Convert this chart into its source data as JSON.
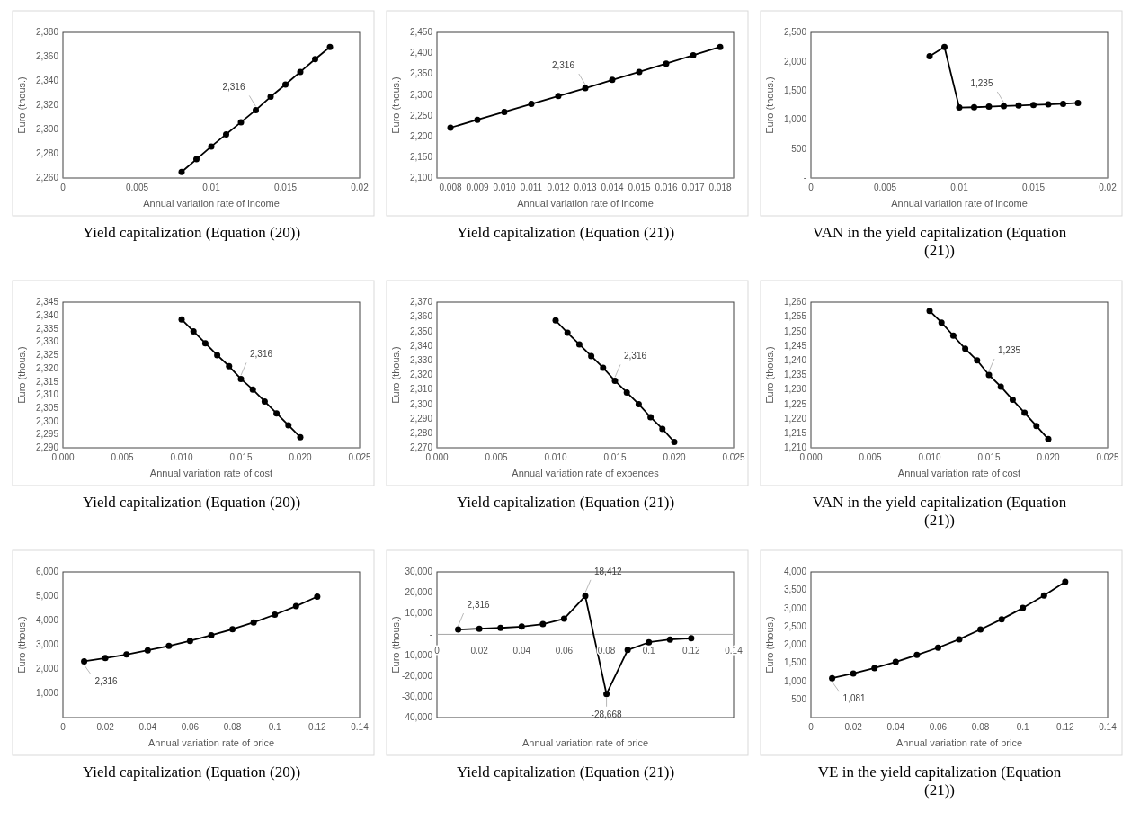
{
  "chart_data": [
    {
      "type": "line",
      "title": "Yield capitalization (Equation (20))",
      "xlabel": "Annual variation rate of income",
      "ylabel": "Euro (thous.)",
      "marker": "circle",
      "grid": false,
      "x": [
        0.008,
        0.009,
        0.01,
        0.011,
        0.012,
        0.013,
        0.014,
        0.015,
        0.016,
        0.017,
        0.018
      ],
      "series": [
        {
          "color": "#000000",
          "values": [
            2265,
            2275.5,
            2286,
            2296,
            2306,
            2316,
            2327,
            2337,
            2347.5,
            2358,
            2368
          ]
        }
      ],
      "xlim": [
        0,
        0.02
      ],
      "xticks": [
        0,
        0.005,
        0.01,
        0.015,
        0.02
      ],
      "ylim": [
        2260,
        2380
      ],
      "yticks": [
        {
          "value": 2260,
          "label": "2,260"
        },
        {
          "value": 2280,
          "label": "2,280"
        },
        {
          "value": 2300,
          "label": "2,300"
        },
        {
          "value": 2320,
          "label": "2,320"
        },
        {
          "value": 2340,
          "label": "2,340"
        },
        {
          "value": 2360,
          "label": "2,360"
        },
        {
          "value": 2380,
          "label": "2,380"
        }
      ],
      "annotations": [
        {
          "text": "2,316",
          "x": 0.013,
          "y": 2316
        }
      ]
    },
    {
      "type": "line",
      "title": "Yield capitalization (Equation (21))",
      "xlabel": "Annual variation rate of income",
      "ylabel": "Euro (thous.)",
      "marker": "circle",
      "grid": false,
      "categories": [
        "0.008",
        "0.009",
        "0.010",
        "0.011",
        "0.012",
        "0.013",
        "0.014",
        "0.015",
        "0.016",
        "0.017",
        "0.018"
      ],
      "series": [
        {
          "color": "#000000",
          "values": [
            2221,
            2240,
            2259,
            2278,
            2297,
            2316,
            2336,
            2355,
            2375,
            2395,
            2415
          ]
        }
      ],
      "ylim": [
        2100,
        2450
      ],
      "yticks": [
        {
          "value": 2100,
          "label": "2,100"
        },
        {
          "value": 2150,
          "label": "2,150"
        },
        {
          "value": 2200,
          "label": "2,200"
        },
        {
          "value": 2250,
          "label": "2,250"
        },
        {
          "value": 2300,
          "label": "2,300"
        },
        {
          "value": 2350,
          "label": "2,350"
        },
        {
          "value": 2400,
          "label": "2,400"
        },
        {
          "value": 2450,
          "label": "2,450"
        }
      ],
      "annotations": [
        {
          "text": "2,316",
          "x": "0.013",
          "y": 2316
        }
      ]
    },
    {
      "type": "line",
      "title": "VAN in the yield capitalization (Equation (21))",
      "xlabel": "Annual variation rate of income",
      "ylabel": "Euro (thous.)",
      "marker": "circle",
      "grid": false,
      "x": [
        0.008,
        0.009,
        0.01,
        0.011,
        0.012,
        0.013,
        0.014,
        0.015,
        0.016,
        0.017,
        0.018
      ],
      "series": [
        {
          "color": "#000000",
          "values": [
            2090,
            2250,
            1210,
            1215,
            1225,
            1235,
            1245,
            1255,
            1265,
            1275,
            1290
          ]
        }
      ],
      "xlim": [
        0,
        0.02
      ],
      "xticks": [
        0,
        0.005,
        0.01,
        0.015,
        0.02
      ],
      "ylim": [
        0,
        2500
      ],
      "yticks": [
        {
          "value": 0,
          "label": "-"
        },
        500,
        {
          "value": 1000,
          "label": "1,000"
        },
        {
          "value": 1500,
          "label": "1,500"
        },
        {
          "value": 2000,
          "label": "2,000"
        },
        {
          "value": 2500,
          "label": "2,500"
        }
      ],
      "annotations": [
        {
          "text": "1,235",
          "x": 0.013,
          "y": 1235
        }
      ]
    },
    {
      "type": "line",
      "title": "Yield capitalization (Equation (20))",
      "xlabel": "Annual variation rate of cost",
      "ylabel": "Euro (thous.)",
      "marker": "circle",
      "grid": false,
      "x": [
        0.01,
        0.011,
        0.012,
        0.013,
        0.014,
        0.015,
        0.016,
        0.017,
        0.018,
        0.019,
        0.02
      ],
      "series": [
        {
          "color": "#000000",
          "values": [
            2338.5,
            2334,
            2329.5,
            2325,
            2320.8,
            2316,
            2312,
            2307.5,
            2303,
            2298.5,
            2294
          ]
        }
      ],
      "xlim": [
        0,
        0.025
      ],
      "xticks": [
        {
          "value": 0,
          "label": "0.000"
        },
        0.005,
        {
          "value": 0.01,
          "label": "0.010"
        },
        0.015,
        {
          "value": 0.02,
          "label": "0.020"
        },
        0.025
      ],
      "ylim": [
        2290,
        2345
      ],
      "yticks": [
        {
          "value": 2290,
          "label": "2,290"
        },
        {
          "value": 2295,
          "label": "2,295"
        },
        {
          "value": 2300,
          "label": "2,300"
        },
        {
          "value": 2305,
          "label": "2,305"
        },
        {
          "value": 2310,
          "label": "2,310"
        },
        {
          "value": 2315,
          "label": "2,315"
        },
        {
          "value": 2320,
          "label": "2,320"
        },
        {
          "value": 2325,
          "label": "2,325"
        },
        {
          "value": 2330,
          "label": "2,330"
        },
        {
          "value": 2335,
          "label": "2,335"
        },
        {
          "value": 2340,
          "label": "2,340"
        },
        {
          "value": 2345,
          "label": "2,345"
        }
      ],
      "annotations": [
        {
          "text": "2,316",
          "x": 0.015,
          "y": 2316
        }
      ]
    },
    {
      "type": "line",
      "title": "Yield capitalization (Equation (21))",
      "xlabel": "Annual variation rate of expences",
      "ylabel": "Euro (thous.)",
      "marker": "circle",
      "grid": false,
      "x": [
        0.01,
        0.011,
        0.012,
        0.013,
        0.014,
        0.015,
        0.016,
        0.017,
        0.018,
        0.019,
        0.02
      ],
      "series": [
        {
          "color": "#000000",
          "values": [
            2357.5,
            2349,
            2341,
            2333,
            2325,
            2316,
            2308,
            2300,
            2291,
            2283,
            2274
          ]
        }
      ],
      "xlim": [
        0,
        0.025
      ],
      "xticks": [
        {
          "value": 0,
          "label": "0.000"
        },
        0.005,
        {
          "value": 0.01,
          "label": "0.010"
        },
        0.015,
        {
          "value": 0.02,
          "label": "0.020"
        },
        0.025
      ],
      "ylim": [
        2270,
        2370
      ],
      "yticks": [
        {
          "value": 2270,
          "label": "2,270"
        },
        {
          "value": 2280,
          "label": "2,280"
        },
        {
          "value": 2290,
          "label": "2,290"
        },
        {
          "value": 2300,
          "label": "2,300"
        },
        {
          "value": 2310,
          "label": "2,310"
        },
        {
          "value": 2320,
          "label": "2,320"
        },
        {
          "value": 2330,
          "label": "2,330"
        },
        {
          "value": 2340,
          "label": "2,340"
        },
        {
          "value": 2350,
          "label": "2,350"
        },
        {
          "value": 2360,
          "label": "2,360"
        },
        {
          "value": 2370,
          "label": "2,370"
        }
      ],
      "annotations": [
        {
          "text": "2,316",
          "x": 0.015,
          "y": 2316
        }
      ]
    },
    {
      "type": "line",
      "title": "VAN in the yield capitalization (Equation (21))",
      "xlabel": "Annual variation rate of cost",
      "ylabel": "Euro (thous.)",
      "marker": "circle",
      "grid": false,
      "x": [
        0.01,
        0.011,
        0.012,
        0.013,
        0.014,
        0.015,
        0.016,
        0.017,
        0.018,
        0.019,
        0.02
      ],
      "series": [
        {
          "color": "#000000",
          "values": [
            1257,
            1253,
            1248.5,
            1244,
            1240,
            1235,
            1231,
            1226.5,
            1222,
            1217.5,
            1213
          ]
        }
      ],
      "xlim": [
        0,
        0.025
      ],
      "xticks": [
        {
          "value": 0,
          "label": "0.000"
        },
        0.005,
        {
          "value": 0.01,
          "label": "0.010"
        },
        0.015,
        {
          "value": 0.02,
          "label": "0.020"
        },
        0.025
      ],
      "ylim": [
        1210,
        1260
      ],
      "yticks": [
        {
          "value": 1210,
          "label": "1,210"
        },
        {
          "value": 1215,
          "label": "1,215"
        },
        {
          "value": 1220,
          "label": "1,220"
        },
        {
          "value": 1225,
          "label": "1,225"
        },
        {
          "value": 1230,
          "label": "1,230"
        },
        {
          "value": 1235,
          "label": "1,235"
        },
        {
          "value": 1240,
          "label": "1,240"
        },
        {
          "value": 1245,
          "label": "1,245"
        },
        {
          "value": 1250,
          "label": "1,250"
        },
        {
          "value": 1255,
          "label": "1,255"
        },
        {
          "value": 1260,
          "label": "1,260"
        }
      ],
      "annotations": [
        {
          "text": "1,235",
          "x": 0.015,
          "y": 1235
        }
      ]
    },
    {
      "type": "line",
      "title": "Yield capitalization (Equation (20))",
      "xlabel": "Annual variation rate of price",
      "ylabel": "Euro (thous.)",
      "marker": "circle",
      "grid": false,
      "x": [
        0.01,
        0.02,
        0.03,
        0.04,
        0.05,
        0.06,
        0.07,
        0.08,
        0.09,
        0.1,
        0.11,
        0.12
      ],
      "series": [
        {
          "color": "#000000",
          "values": [
            2316,
            2450,
            2600,
            2770,
            2950,
            3160,
            3390,
            3640,
            3920,
            4240,
            4590,
            4980
          ]
        }
      ],
      "xlim": [
        0,
        0.14
      ],
      "xticks": [
        0,
        0.02,
        0.04,
        0.06,
        0.08,
        0.1,
        0.12,
        0.14
      ],
      "ylim": [
        0,
        6000
      ],
      "yticks": [
        {
          "value": 0,
          "label": "-"
        },
        {
          "value": 1000,
          "label": "1,000"
        },
        {
          "value": 2000,
          "label": "2,000"
        },
        {
          "value": 3000,
          "label": "3,000"
        },
        {
          "value": 4000,
          "label": "4,000"
        },
        {
          "value": 5000,
          "label": "5,000"
        },
        {
          "value": 6000,
          "label": "6,000"
        }
      ],
      "annotations": [
        {
          "text": "2,316",
          "x": 0.01,
          "y": 2316
        }
      ]
    },
    {
      "type": "line",
      "title": "Yield capitalization (Equation (21))",
      "xlabel": "Annual variation rate of price",
      "ylabel": "Euro (thous.)",
      "marker": "circle",
      "grid": false,
      "x": [
        0.01,
        0.02,
        0.03,
        0.04,
        0.05,
        0.06,
        0.07,
        0.08,
        0.09,
        0.1,
        0.11,
        0.12
      ],
      "series": [
        {
          "color": "#000000",
          "values": [
            2316,
            2700,
            3100,
            3700,
            4900,
            7500,
            18412,
            -28668,
            -7500,
            -3800,
            -2500,
            -1900
          ]
        }
      ],
      "xlim": [
        0,
        0.14
      ],
      "xticks": [
        0,
        0.02,
        0.04,
        0.06,
        0.08,
        0.1,
        0.12,
        0.14
      ],
      "ylim": [
        -40000,
        30000
      ],
      "yticks": [
        {
          "value": -40000,
          "label": "-40,000"
        },
        {
          "value": -30000,
          "label": "-30,000"
        },
        {
          "value": -20000,
          "label": "-20,000"
        },
        {
          "value": -10000,
          "label": "-10,000"
        },
        {
          "value": 0,
          "label": "-"
        },
        {
          "value": 10000,
          "label": "10,000"
        },
        {
          "value": 20000,
          "label": "20,000"
        },
        {
          "value": 30000,
          "label": "30,000"
        }
      ],
      "annotations": [
        {
          "text": "2,316",
          "x": 0.01,
          "y": 2316
        },
        {
          "text": "18,412",
          "x": 0.07,
          "y": 18412
        },
        {
          "text": "-28,668",
          "x": 0.08,
          "y": -28668
        }
      ]
    },
    {
      "type": "line",
      "title": "VE in the yield capitalization (Equation (21))",
      "xlabel": "Annual variation rate of price",
      "ylabel": "Euro (thous.)",
      "marker": "circle",
      "grid": false,
      "x": [
        0.01,
        0.02,
        0.03,
        0.04,
        0.05,
        0.06,
        0.07,
        0.08,
        0.09,
        0.1,
        0.11,
        0.12
      ],
      "series": [
        {
          "color": "#000000",
          "values": [
            1081,
            1210,
            1360,
            1530,
            1720,
            1920,
            2150,
            2420,
            2700,
            3010,
            3350,
            3730
          ]
        }
      ],
      "xlim": [
        0,
        0.14
      ],
      "xticks": [
        0,
        0.02,
        0.04,
        0.06,
        0.08,
        0.1,
        0.12,
        0.14
      ],
      "ylim": [
        0,
        4000
      ],
      "yticks": [
        {
          "value": 0,
          "label": "-"
        },
        500,
        {
          "value": 1000,
          "label": "1,000"
        },
        {
          "value": 1500,
          "label": "1,500"
        },
        {
          "value": 2000,
          "label": "2,000"
        },
        {
          "value": 2500,
          "label": "2,500"
        },
        {
          "value": 3000,
          "label": "3,000"
        },
        {
          "value": 3500,
          "label": "3,500"
        },
        {
          "value": 4000,
          "label": "4,000"
        }
      ],
      "annotations": [
        {
          "text": "1,081",
          "x": 0.01,
          "y": 1081
        }
      ]
    }
  ]
}
